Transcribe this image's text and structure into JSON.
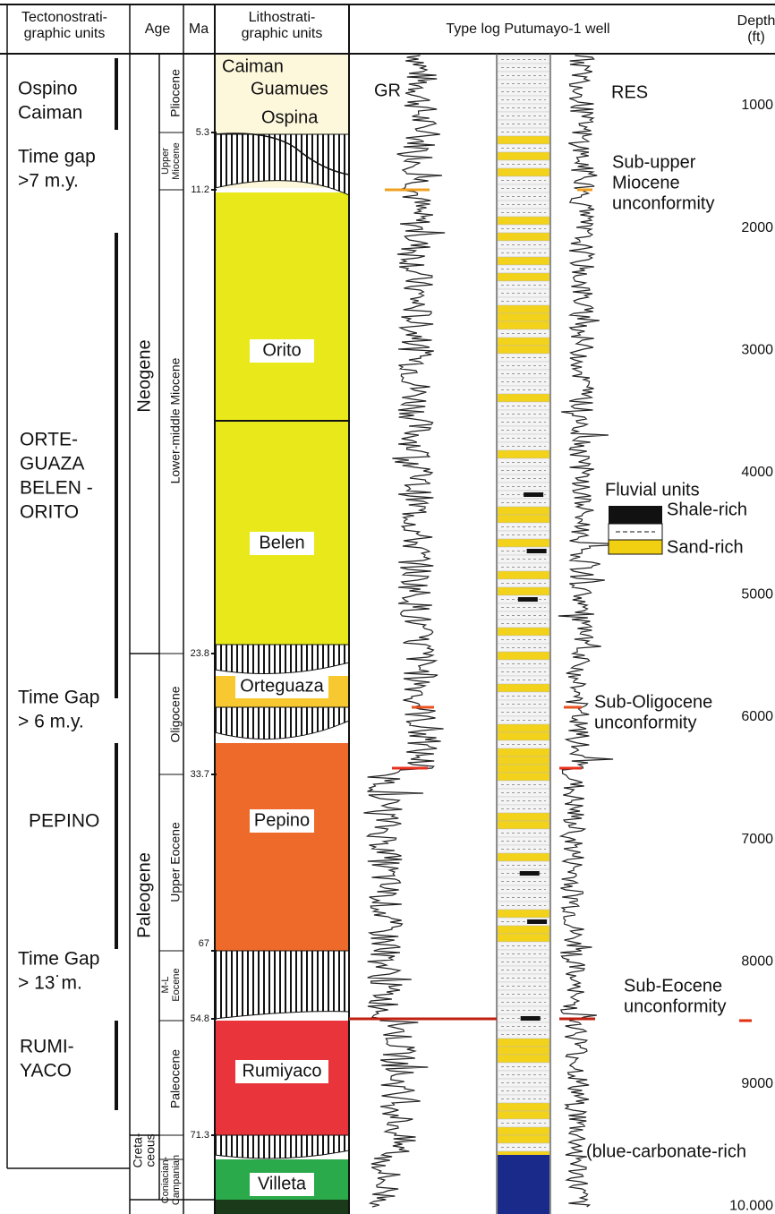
{
  "header": {
    "columns": [
      [
        "Tectonostrati-",
        "graphic units"
      ],
      [
        "Age"
      ],
      [
        "Ma"
      ],
      [
        "Lithostrati-",
        "graphic units"
      ],
      [
        "Type log Putumayo-1 well"
      ],
      [
        "Depth",
        "(ft)"
      ]
    ]
  },
  "tectonostratigraphic_units": [
    [
      "Ospino",
      "Caiman"
    ],
    [
      "Time gap",
      ">7 m.y."
    ],
    [
      "ORTE-",
      "GUAZA",
      "BELEN -",
      "ORITO"
    ],
    [
      "Time Gap",
      "> 6 m.y."
    ],
    [
      "PEPINO"
    ],
    [
      "Time Gap",
      "> 13˙m."
    ],
    [
      "RUMI-",
      "YACO"
    ]
  ],
  "periods": [
    [
      "Neogene"
    ],
    [
      "Paleogene"
    ],
    [
      "Creta-",
      "ceous"
    ]
  ],
  "epochs": [
    [
      "Pliocene"
    ],
    [
      "Upper",
      "Miocene"
    ],
    [
      "Lower-middle Miocene"
    ],
    [
      "Oligocene"
    ],
    [
      "Upper Eocene"
    ],
    [
      "M-L",
      "Eocene"
    ],
    [
      "Paleocene"
    ],
    [
      "Coniacian-",
      "Campanian"
    ]
  ],
  "ma_ticks": [
    "5.3",
    "11.2",
    "23.8",
    "33.7",
    "67",
    "54.8",
    "71.3"
  ],
  "lithostratigraphic_units": [
    "Caiman",
    "Guamues",
    "Ospina",
    "Orito",
    "Belen",
    "Orteguaza",
    "Pepino",
    "Rumiyaco",
    "Villeta"
  ],
  "log_labels": [
    "GR",
    "RES"
  ],
  "annotations": [
    [
      "Sub-upper",
      "Miocene",
      "unconformity"
    ],
    [
      "Sub-Oligocene",
      "unconformity"
    ],
    [
      "Sub-Eocene",
      "unconformity"
    ],
    [
      "(blue-carbonate-rich"
    ]
  ],
  "legend": {
    "title": "Fluvial units",
    "items": [
      "Shale-rich",
      "Sand-rich"
    ]
  },
  "depth_labels": [
    "1000",
    "2000",
    "3000",
    "4000",
    "5000",
    "6000",
    "7000",
    "8000",
    "9000",
    "10.000"
  ]
}
